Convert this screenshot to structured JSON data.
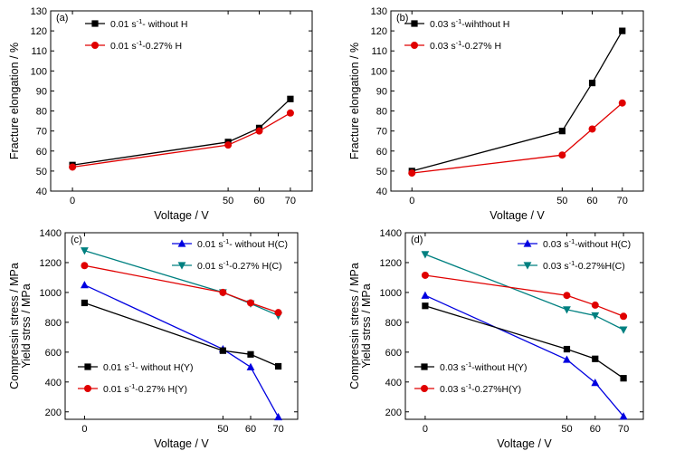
{
  "chart_data": [
    {
      "type": "line",
      "panel_label": "(a)",
      "xlabel": "Voltage / V",
      "ylabel": "Fracture elongation / %",
      "ylabel2": "",
      "x": [
        0,
        50,
        60,
        70
      ],
      "xticks": [
        "0",
        "50",
        "60",
        "70"
      ],
      "ylim": [
        40,
        130
      ],
      "yticks": [
        40,
        50,
        60,
        70,
        80,
        90,
        100,
        110,
        120,
        130
      ],
      "grid": false,
      "legend_position": "top-left",
      "series": [
        {
          "name_main": "0.01 s",
          "name_sup": "-1",
          "name_rest": "- without H",
          "color": "#000000",
          "marker": "square",
          "values": [
            53,
            64.5,
            71.5,
            86
          ]
        },
        {
          "name_main": "0.01 s",
          "name_sup": "-1",
          "name_rest": "-0.27% H",
          "color": "#e00000",
          "marker": "circle",
          "values": [
            52,
            63,
            70,
            79
          ]
        }
      ]
    },
    {
      "type": "line",
      "panel_label": "(b)",
      "xlabel": "Voltage / V",
      "ylabel": "Fracture elongation / %",
      "ylabel2": "",
      "x": [
        0,
        50,
        60,
        70
      ],
      "xticks": [
        "0",
        "50",
        "60",
        "70"
      ],
      "ylim": [
        40,
        130
      ],
      "yticks": [
        40,
        50,
        60,
        70,
        80,
        90,
        100,
        110,
        120,
        130
      ],
      "grid": false,
      "legend_position": "top-left",
      "series": [
        {
          "name_main": "0.03 s",
          "name_sup": "-1",
          "name_rest": "-wihthout H",
          "color": "#000000",
          "marker": "square",
          "values": [
            50,
            70,
            94,
            120
          ]
        },
        {
          "name_main": "0.03 s",
          "name_sup": "-1",
          "name_rest": "-0.27% H",
          "color": "#e00000",
          "marker": "circle",
          "values": [
            49,
            58,
            71,
            84
          ]
        }
      ]
    },
    {
      "type": "line",
      "panel_label": "(c)",
      "xlabel": "Voltage / V",
      "ylabel": "Compressin stress / MPa",
      "ylabel2": "Yield strss / MPa",
      "x": [
        0,
        50,
        60,
        70
      ],
      "xticks": [
        "0",
        "50",
        "60",
        "70"
      ],
      "ylim": [
        150,
        1400
      ],
      "yticks": [
        200,
        400,
        600,
        800,
        1000,
        1200,
        1400
      ],
      "grid": false,
      "legend_position": "top-right and bottom-left",
      "series": [
        {
          "name_main": "0.01 s",
          "name_sup": "-1",
          "name_rest": "- without H(C)",
          "color": "#0000e0",
          "marker": "triangle-up",
          "values": [
            1050,
            620,
            500,
            165
          ]
        },
        {
          "name_main": "0.01 s",
          "name_sup": "-1",
          "name_rest": "-0.27% H(C)",
          "color": "#008080",
          "marker": "triangle-down",
          "values": [
            1280,
            1000,
            925,
            845
          ]
        },
        {
          "name_main": "0.01 s",
          "name_sup": "-1",
          "name_rest": "- without H(Y)",
          "color": "#000000",
          "marker": "square",
          "values": [
            930,
            610,
            585,
            505
          ]
        },
        {
          "name_main": "0.01 s",
          "name_sup": "-1",
          "name_rest": "-0.27% H(Y)",
          "color": "#e00000",
          "marker": "circle",
          "values": [
            1180,
            1000,
            930,
            865
          ]
        }
      ]
    },
    {
      "type": "line",
      "panel_label": "(d)",
      "xlabel": "Voltage / V",
      "ylabel": "Compressin stress / MPa",
      "ylabel2": "Yield strss / MPa",
      "x": [
        0,
        50,
        60,
        70
      ],
      "xticks": [
        "0",
        "50",
        "60",
        "70"
      ],
      "ylim": [
        150,
        1400
      ],
      "yticks": [
        200,
        400,
        600,
        800,
        1000,
        1200,
        1400
      ],
      "grid": false,
      "legend_position": "top-right and bottom-left",
      "series": [
        {
          "name_main": "0.03 s",
          "name_sup": "-1",
          "name_rest": "-without H(C)",
          "color": "#0000e0",
          "marker": "triangle-up",
          "values": [
            980,
            550,
            395,
            170
          ]
        },
        {
          "name_main": "0.03 s",
          "name_sup": "-1",
          "name_rest": "-0.27%H(C)",
          "color": "#008080",
          "marker": "triangle-down",
          "values": [
            1255,
            885,
            845,
            750
          ]
        },
        {
          "name_main": "0.03 s",
          "name_sup": "-1",
          "name_rest": "-without H(Y)",
          "color": "#000000",
          "marker": "square",
          "values": [
            910,
            620,
            555,
            425
          ]
        },
        {
          "name_main": "0.03 s",
          "name_sup": "-1",
          "name_rest": "-0.27%H(Y)",
          "color": "#e00000",
          "marker": "circle",
          "values": [
            1115,
            980,
            915,
            840
          ]
        }
      ]
    }
  ]
}
